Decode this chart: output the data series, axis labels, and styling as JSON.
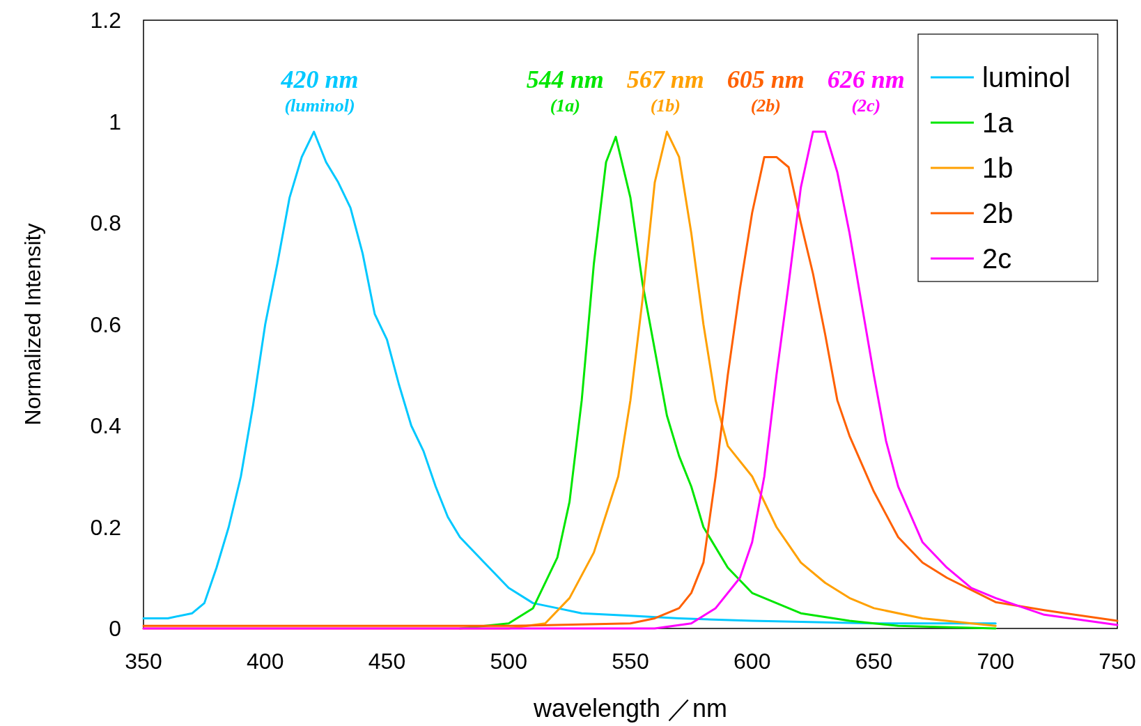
{
  "chart_data": {
    "type": "line",
    "xlabel": "wavelength ／nm",
    "ylabel": "Normalized Intensity",
    "xlim": [
      350,
      750
    ],
    "xticks": [
      350,
      400,
      450,
      500,
      550,
      600,
      650,
      700,
      750
    ],
    "ylim": [
      0,
      1.2
    ],
    "yticks": [
      0,
      0.2,
      0.4,
      0.6,
      0.8,
      1,
      1.2
    ],
    "legend": "top right",
    "grid": false,
    "marker": "none",
    "line_style": "solid",
    "series": [
      {
        "name": "luminol",
        "color": "#00c8ff",
        "x": [
          350,
          360,
          370,
          375,
          380,
          385,
          390,
          395,
          400,
          405,
          410,
          415,
          420,
          425,
          430,
          435,
          440,
          445,
          450,
          455,
          460,
          465,
          470,
          475,
          480,
          490,
          500,
          510,
          520,
          530,
          550,
          570,
          600,
          650,
          700
        ],
        "values": [
          0.02,
          0.02,
          0.03,
          0.05,
          0.12,
          0.2,
          0.3,
          0.44,
          0.6,
          0.72,
          0.85,
          0.93,
          0.98,
          0.92,
          0.88,
          0.83,
          0.74,
          0.62,
          0.57,
          0.48,
          0.4,
          0.35,
          0.28,
          0.22,
          0.18,
          0.13,
          0.08,
          0.05,
          0.04,
          0.03,
          0.025,
          0.02,
          0.015,
          0.01,
          0.01
        ]
      },
      {
        "name": "1a",
        "color": "#00e600",
        "x": [
          480,
          500,
          510,
          520,
          525,
          530,
          535,
          540,
          544,
          550,
          555,
          560,
          565,
          570,
          575,
          580,
          590,
          600,
          620,
          640,
          660,
          700
        ],
        "values": [
          0,
          0.01,
          0.04,
          0.14,
          0.25,
          0.45,
          0.72,
          0.92,
          0.97,
          0.85,
          0.68,
          0.55,
          0.42,
          0.34,
          0.28,
          0.2,
          0.12,
          0.07,
          0.03,
          0.015,
          0.005,
          0
        ]
      },
      {
        "name": "1b",
        "color": "#ffa000",
        "x": [
          350,
          500,
          515,
          525,
          535,
          545,
          550,
          555,
          560,
          565,
          570,
          575,
          580,
          585,
          590,
          600,
          610,
          620,
          630,
          640,
          650,
          670,
          700
        ],
        "values": [
          0,
          0,
          0.01,
          0.06,
          0.15,
          0.3,
          0.45,
          0.65,
          0.88,
          0.98,
          0.93,
          0.78,
          0.6,
          0.45,
          0.36,
          0.3,
          0.2,
          0.13,
          0.09,
          0.06,
          0.04,
          0.02,
          0.005
        ]
      },
      {
        "name": "2b",
        "color": "#ff6000",
        "x": [
          350,
          500,
          550,
          560,
          570,
          575,
          580,
          585,
          590,
          595,
          600,
          605,
          610,
          615,
          620,
          625,
          630,
          635,
          640,
          650,
          660,
          670,
          680,
          700,
          720,
          750
        ],
        "values": [
          0.005,
          0.005,
          0.01,
          0.02,
          0.04,
          0.07,
          0.13,
          0.3,
          0.5,
          0.67,
          0.82,
          0.93,
          0.93,
          0.91,
          0.8,
          0.7,
          0.58,
          0.45,
          0.38,
          0.27,
          0.18,
          0.13,
          0.1,
          0.052,
          0.036,
          0.015
        ]
      },
      {
        "name": "2c",
        "color": "#ff00ff",
        "x": [
          350,
          560,
          575,
          585,
          595,
          600,
          605,
          610,
          615,
          620,
          625,
          630,
          635,
          640,
          645,
          650,
          655,
          660,
          670,
          680,
          690,
          700,
          720,
          750
        ],
        "values": [
          0,
          0,
          0.01,
          0.04,
          0.1,
          0.17,
          0.3,
          0.5,
          0.68,
          0.87,
          0.98,
          0.98,
          0.9,
          0.78,
          0.64,
          0.5,
          0.37,
          0.28,
          0.17,
          0.12,
          0.08,
          0.06,
          0.027,
          0.007
        ]
      }
    ],
    "annotations": [
      "420 nm",
      "(luminol)",
      "544 nm",
      "(1a)",
      "567 nm",
      "(1b)",
      "605 nm",
      "(2b)",
      "626 nm",
      "(2c)"
    ]
  }
}
